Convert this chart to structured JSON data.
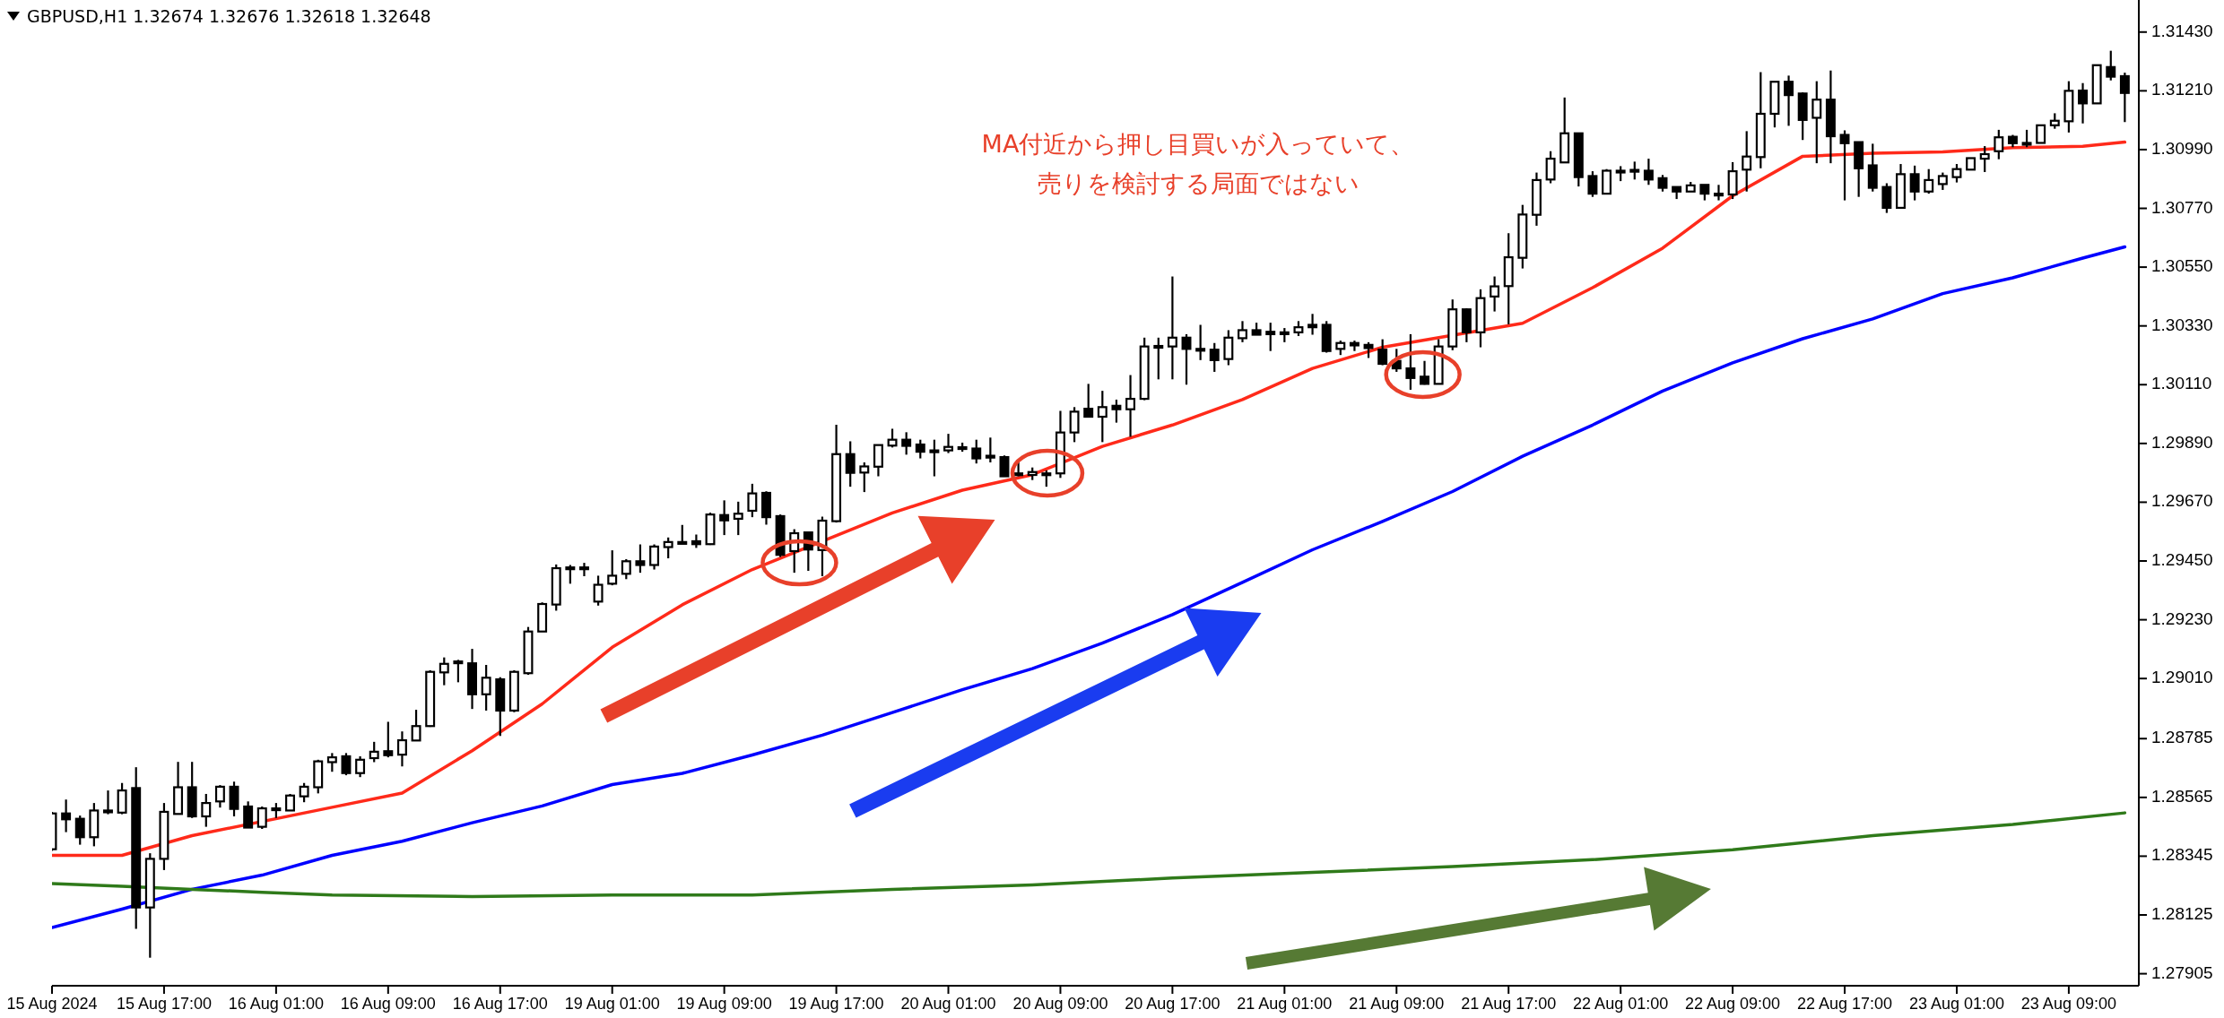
{
  "chart_data": {
    "type": "candlestick",
    "title": "GBPUSD,H1  1.32674 1.32676 1.32618 1.32648",
    "annotations": [
      "MA付近から押し目買いが入っていて、",
      "売りを検討する局面ではない"
    ],
    "ylim": [
      1.2786,
      1.3155
    ],
    "categories": [
      "15 Aug 2024",
      null,
      null,
      null,
      null,
      null,
      null,
      null,
      "15 Aug 17:00",
      null,
      null,
      null,
      null,
      null,
      null,
      null,
      "16 Aug 01:00",
      null,
      null,
      null,
      null,
      null,
      null,
      null,
      "16 Aug 09:00",
      null,
      null,
      null,
      null,
      null,
      null,
      null,
      "16 Aug 17:00",
      null,
      null,
      null,
      null,
      null,
      null,
      null,
      "19 Aug 01:00",
      null,
      null,
      null,
      null,
      null,
      null,
      null,
      "19 Aug 09:00",
      null,
      null,
      null,
      null,
      null,
      null,
      null,
      "19 Aug 17:00",
      null,
      null,
      null,
      null,
      null,
      null,
      null,
      "20 Aug 01:00",
      null,
      null,
      null,
      null,
      null,
      null,
      null,
      "20 Aug 09:00",
      null,
      null,
      null,
      null,
      null,
      null,
      null,
      "20 Aug 17:00",
      null,
      null,
      null,
      null,
      null,
      null,
      null,
      "21 Aug 01:00",
      null,
      null,
      null,
      null,
      null,
      null,
      null,
      "21 Aug 09:00",
      null,
      null,
      null,
      null,
      null,
      null,
      null,
      "21 Aug 17:00",
      null,
      null,
      null,
      null,
      null,
      null,
      null,
      "22 Aug 01:00",
      null,
      null,
      null,
      null,
      null,
      null,
      null,
      "22 Aug 09:00",
      null,
      null,
      null,
      null,
      null,
      null,
      null,
      "22 Aug 17:00",
      null,
      null,
      null,
      null,
      null,
      null,
      null,
      "23 Aug 01:00",
      null,
      null,
      null,
      null,
      null,
      null,
      null,
      "23 Aug 09:00",
      null,
      null,
      null,
      null
    ],
    "yticks": [
      {
        "value": 1.27905,
        "label": "1.27905"
      },
      {
        "value": 1.28125,
        "label": "1.28125"
      },
      {
        "value": 1.28345,
        "label": "1.28345"
      },
      {
        "value": 1.28565,
        "label": "1.28565"
      },
      {
        "value": 1.28785,
        "label": "1.28785"
      },
      {
        "value": 1.2901,
        "label": "1.29010"
      },
      {
        "value": 1.2923,
        "label": "1.29230"
      },
      {
        "value": 1.2945,
        "label": "1.29450"
      },
      {
        "value": 1.2967,
        "label": "1.29670"
      },
      {
        "value": 1.2989,
        "label": "1.29890"
      },
      {
        "value": 1.3011,
        "label": "1.30110"
      },
      {
        "value": 1.3033,
        "label": "1.30330"
      },
      {
        "value": 1.3055,
        "label": "1.30550"
      },
      {
        "value": 1.3077,
        "label": "1.30770"
      },
      {
        "value": 1.3099,
        "label": "1.30990"
      },
      {
        "value": 1.3121,
        "label": "1.31210"
      },
      {
        "value": 1.3143,
        "label": "1.31430"
      }
    ],
    "ohlc": [
      [
        1.28371,
        1.28511,
        1.28365,
        1.28505
      ],
      [
        1.28505,
        1.28557,
        1.28435,
        1.28483
      ],
      [
        1.28485,
        1.28497,
        1.28388,
        1.28416
      ],
      [
        1.28416,
        1.28544,
        1.28382,
        1.28516
      ],
      [
        1.28516,
        1.28591,
        1.28502,
        1.28516
      ],
      [
        1.28508,
        1.28619,
        1.28502,
        1.28591
      ],
      [
        1.286,
        1.28678,
        1.28073,
        1.28153
      ],
      [
        1.28153,
        1.28356,
        1.27965,
        1.28335
      ],
      [
        1.28335,
        1.28544,
        1.28293,
        1.28511
      ],
      [
        1.28503,
        1.28698,
        1.28503,
        1.28603
      ],
      [
        1.28603,
        1.28698,
        1.28488,
        1.28494
      ],
      [
        1.28494,
        1.28578,
        1.28455,
        1.28544
      ],
      [
        1.2855,
        1.28611,
        1.28527,
        1.28605
      ],
      [
        1.28605,
        1.28624,
        1.28494,
        1.28522
      ],
      [
        1.28531,
        1.2855,
        1.28452,
        1.28452
      ],
      [
        1.28455,
        1.28531,
        1.28447,
        1.28524
      ],
      [
        1.28524,
        1.28544,
        1.28488,
        1.2852
      ],
      [
        1.28516,
        1.28578,
        1.28516,
        1.28572
      ],
      [
        1.28569,
        1.28619,
        1.28547,
        1.28605
      ],
      [
        1.28603,
        1.28706,
        1.2858,
        1.287
      ],
      [
        1.28697,
        1.28731,
        1.28661,
        1.28715
      ],
      [
        1.28719,
        1.28731,
        1.28648,
        1.28656
      ],
      [
        1.28656,
        1.28719,
        1.28641,
        1.28706
      ],
      [
        1.28712,
        1.28773,
        1.28697,
        1.28736
      ],
      [
        1.28738,
        1.28848,
        1.28715,
        1.28723
      ],
      [
        1.28725,
        1.28812,
        1.28681,
        1.28779
      ],
      [
        1.28778,
        1.28893,
        1.28778,
        1.28832
      ],
      [
        1.28832,
        1.29041,
        1.28829,
        1.29035
      ],
      [
        1.29033,
        1.29089,
        1.28985,
        1.29065
      ],
      [
        1.29074,
        1.2908,
        1.28996,
        1.29074
      ],
      [
        1.29067,
        1.29121,
        1.28896,
        1.28951
      ],
      [
        1.28951,
        1.29061,
        1.2889,
        1.29013
      ],
      [
        1.29007,
        1.29015,
        1.28795,
        1.2889
      ],
      [
        1.2889,
        1.29041,
        1.28884,
        1.29035
      ],
      [
        1.2903,
        1.29203,
        1.29024,
        1.29186
      ],
      [
        1.29186,
        1.29295,
        1.29186,
        1.29289
      ],
      [
        1.29287,
        1.29437,
        1.29264,
        1.29423
      ],
      [
        1.29426,
        1.29435,
        1.29365,
        1.29426
      ],
      [
        1.29426,
        1.29443,
        1.29393,
        1.29426
      ],
      [
        1.29298,
        1.29395,
        1.29283,
        1.29361
      ],
      [
        1.29365,
        1.2949,
        1.29359,
        1.29395
      ],
      [
        1.29402,
        1.29457,
        1.29382,
        1.29449
      ],
      [
        1.29449,
        1.29512,
        1.29406,
        1.29435
      ],
      [
        1.29435,
        1.29512,
        1.29418,
        1.29504
      ],
      [
        1.29502,
        1.29538,
        1.2946,
        1.29521
      ],
      [
        1.29521,
        1.29585,
        1.29513,
        1.29521
      ],
      [
        1.29524,
        1.29549,
        1.29499,
        1.29513
      ],
      [
        1.29513,
        1.29631,
        1.2951,
        1.29624
      ],
      [
        1.29622,
        1.29677,
        1.29547,
        1.29602
      ],
      [
        1.29608,
        1.29672,
        1.29547,
        1.29627
      ],
      [
        1.29638,
        1.29739,
        1.29614,
        1.29703
      ],
      [
        1.29705,
        1.29711,
        1.29586,
        1.29614
      ],
      [
        1.29618,
        1.29624,
        1.29465,
        1.29473
      ],
      [
        1.29487,
        1.29569,
        1.29406,
        1.29554
      ],
      [
        1.29557,
        1.29557,
        1.29413,
        1.29493
      ],
      [
        1.29491,
        1.29616,
        1.29393,
        1.29601
      ],
      [
        1.29599,
        1.2996,
        1.29594,
        1.2985
      ],
      [
        1.2985,
        1.29898,
        1.29728,
        1.2978
      ],
      [
        1.29781,
        1.29819,
        1.29708,
        1.29804
      ],
      [
        1.29803,
        1.29884,
        1.29767,
        1.29884
      ],
      [
        1.29882,
        1.29945,
        1.29875,
        1.29904
      ],
      [
        1.29904,
        1.29932,
        1.29848,
        1.29881
      ],
      [
        1.29886,
        1.29904,
        1.29834,
        1.29859
      ],
      [
        1.29864,
        1.29904,
        1.29767,
        1.29859
      ],
      [
        1.29864,
        1.29926,
        1.29854,
        1.29877
      ],
      [
        1.29876,
        1.29893,
        1.29859,
        1.29876
      ],
      [
        1.29871,
        1.29904,
        1.29815,
        1.29834
      ],
      [
        1.29844,
        1.29912,
        1.29819,
        1.29837
      ],
      [
        1.29839,
        1.29845,
        1.29767,
        1.29767
      ],
      [
        1.29778,
        1.29823,
        1.29767,
        1.29775
      ],
      [
        1.29772,
        1.298,
        1.29753,
        1.29783
      ],
      [
        1.29778,
        1.29789,
        1.29728,
        1.29778
      ],
      [
        1.29778,
        1.30012,
        1.29761,
        1.29931
      ],
      [
        1.29931,
        1.30026,
        1.29895,
        1.30009
      ],
      [
        1.3002,
        1.30113,
        1.2999,
        1.2999
      ],
      [
        1.2999,
        1.30087,
        1.29895,
        1.30026
      ],
      [
        1.30031,
        1.30054,
        1.29968,
        1.30018
      ],
      [
        1.30018,
        1.30146,
        1.29915,
        1.30057
      ],
      [
        1.30057,
        1.30286,
        1.30052,
        1.30253
      ],
      [
        1.30255,
        1.30286,
        1.3013,
        1.30255
      ],
      [
        1.30253,
        1.30515,
        1.3013,
        1.30286
      ],
      [
        1.30286,
        1.30299,
        1.3011,
        1.30244
      ],
      [
        1.30244,
        1.30334,
        1.30202,
        1.30244
      ],
      [
        1.30241,
        1.30266,
        1.30158,
        1.30202
      ],
      [
        1.30206,
        1.30314,
        1.30183,
        1.30286
      ],
      [
        1.30284,
        1.30348,
        1.30269,
        1.30314
      ],
      [
        1.30314,
        1.30342,
        1.30297,
        1.30297
      ],
      [
        1.30308,
        1.30342,
        1.30236,
        1.30299
      ],
      [
        1.30306,
        1.30322,
        1.30269,
        1.30306
      ],
      [
        1.30306,
        1.30348,
        1.30292,
        1.30325
      ],
      [
        1.30334,
        1.30375,
        1.30297,
        1.30325
      ],
      [
        1.30334,
        1.30348,
        1.3023,
        1.30236
      ],
      [
        1.30244,
        1.30275,
        1.30221,
        1.30266
      ],
      [
        1.30266,
        1.30275,
        1.30236,
        1.30257
      ],
      [
        1.30259,
        1.30269,
        1.3021,
        1.30247
      ],
      [
        1.30241,
        1.3028,
        1.30183,
        1.30188
      ],
      [
        1.30199,
        1.30244,
        1.30158,
        1.30171
      ],
      [
        1.30171,
        1.30299,
        1.30091,
        1.30135
      ],
      [
        1.3014,
        1.30199,
        1.3011,
        1.30113
      ],
      [
        1.30113,
        1.3028,
        1.30113,
        1.30253
      ],
      [
        1.30253,
        1.30429,
        1.30239,
        1.30392
      ],
      [
        1.30392,
        1.30396,
        1.30269,
        1.30306
      ],
      [
        1.30306,
        1.30467,
        1.3025,
        1.30434
      ],
      [
        1.3044,
        1.30515,
        1.30384,
        1.30478
      ],
      [
        1.30479,
        1.30677,
        1.30336,
        1.30587
      ],
      [
        1.30585,
        1.30783,
        1.30545,
        1.30747
      ],
      [
        1.30746,
        1.30904,
        1.30705,
        1.30876
      ],
      [
        1.30878,
        1.30984,
        1.30864,
        1.30956
      ],
      [
        1.30942,
        1.31185,
        1.30942,
        1.31051
      ],
      [
        1.31051,
        1.31051,
        1.30852,
        1.30887
      ],
      [
        1.30891,
        1.30909,
        1.30813,
        1.30825
      ],
      [
        1.30825,
        1.30917,
        1.30825,
        1.30911
      ],
      [
        1.30911,
        1.30928,
        1.30872,
        1.30911
      ],
      [
        1.30914,
        1.30945,
        1.30878,
        1.30914
      ],
      [
        1.30911,
        1.30956,
        1.30858,
        1.30878
      ],
      [
        1.30883,
        1.30895,
        1.30833,
        1.30847
      ],
      [
        1.3085,
        1.3085,
        1.30805,
        1.30833
      ],
      [
        1.30833,
        1.30869,
        1.30833,
        1.30856
      ],
      [
        1.30858,
        1.30858,
        1.308,
        1.30825
      ],
      [
        1.30825,
        1.30858,
        1.308,
        1.30825
      ],
      [
        1.30822,
        1.30943,
        1.30805,
        1.30909
      ],
      [
        1.30915,
        1.31059,
        1.30833,
        1.30964
      ],
      [
        1.30962,
        1.3128,
        1.3092,
        1.31124
      ],
      [
        1.31124,
        1.31244,
        1.31073,
        1.31244
      ],
      [
        1.31244,
        1.31267,
        1.31079,
        1.31194
      ],
      [
        1.312,
        1.31204,
        1.31026,
        1.31101
      ],
      [
        1.31109,
        1.31246,
        1.30939,
        1.31177
      ],
      [
        1.31177,
        1.31286,
        1.30939,
        1.3104
      ],
      [
        1.31045,
        1.31062,
        1.308,
        1.31014
      ],
      [
        1.31018,
        1.31018,
        1.30813,
        1.3092
      ],
      [
        1.30931,
        1.31012,
        1.30833,
        1.30847
      ],
      [
        1.3085,
        1.30864,
        1.30753,
        1.30772
      ],
      [
        1.30772,
        1.30936,
        1.30772,
        1.30898
      ],
      [
        1.30898,
        1.3093,
        1.308,
        1.30833
      ],
      [
        1.30833,
        1.30917,
        1.30825,
        1.30876
      ],
      [
        1.30861,
        1.30904,
        1.30839,
        1.30891
      ],
      [
        1.30887,
        1.30936,
        1.30867,
        1.30917
      ],
      [
        1.30915,
        1.30958,
        1.30915,
        1.30958
      ],
      [
        1.30956,
        1.31003,
        1.30906,
        1.30973
      ],
      [
        1.30984,
        1.31064,
        1.30954,
        1.31036
      ],
      [
        1.31038,
        1.31045,
        1.30999,
        1.31014
      ],
      [
        1.31015,
        1.31064,
        1.30999,
        1.31015
      ],
      [
        1.31015,
        1.31082,
        1.31015,
        1.31081
      ],
      [
        1.31081,
        1.31126,
        1.31068,
        1.31098
      ],
      [
        1.31096,
        1.31246,
        1.31054,
        1.3121
      ],
      [
        1.31211,
        1.31239,
        1.31088,
        1.31163
      ],
      [
        1.31163,
        1.31306,
        1.31163,
        1.31306
      ],
      [
        1.31299,
        1.3136,
        1.31249,
        1.31263
      ],
      [
        1.31265,
        1.31278,
        1.31093,
        1.31202
      ]
    ],
    "series": [
      {
        "type": "line",
        "color": "#ff2a1a",
        "values": [
          1.28348,
          null,
          null,
          null,
          null,
          1.28348,
          null,
          null,
          null,
          null,
          1.28422,
          null,
          null,
          null,
          null,
          null,
          null,
          null,
          null,
          null,
          1.28528,
          null,
          null,
          null,
          null,
          1.28581,
          null,
          null,
          null,
          null,
          1.2874,
          null,
          null,
          null,
          null,
          1.28915,
          null,
          null,
          null,
          null,
          1.29127,
          null,
          null,
          null,
          null,
          1.29286,
          null,
          null,
          null,
          null,
          1.29418,
          null,
          null,
          null,
          null,
          null,
          null,
          null,
          null,
          null,
          1.2963,
          null,
          null,
          null,
          null,
          1.29715,
          null,
          null,
          null,
          null,
          1.29773,
          null,
          null,
          null,
          null,
          1.29879,
          null,
          null,
          null,
          null,
          1.29959,
          null,
          null,
          null,
          null,
          1.30054,
          null,
          null,
          null,
          null,
          1.30171,
          null,
          null,
          null,
          null,
          1.3025,
          null,
          null,
          null,
          null,
          null,
          null,
          null,
          null,
          null,
          1.3034,
          null,
          null,
          null,
          null,
          1.30473,
          null,
          null,
          null,
          null,
          1.30621,
          null,
          null,
          null,
          null,
          1.30817,
          null,
          null,
          null,
          null,
          1.30965,
          null,
          null,
          null,
          null,
          1.30976,
          null,
          null,
          null,
          null,
          1.30981,
          null,
          null,
          null,
          null,
          1.30997,
          null,
          null,
          null,
          null,
          1.31002,
          null,
          null,
          1.31018
        ]
      },
      {
        "type": "line",
        "color": "#0000ff",
        "values": [
          1.28078,
          null,
          null,
          null,
          null,
          1.28147,
          null,
          null,
          null,
          null,
          1.28221,
          null,
          null,
          null,
          null,
          1.28274,
          null,
          null,
          null,
          null,
          1.28348,
          null,
          null,
          null,
          null,
          1.28401,
          null,
          null,
          null,
          null,
          1.2847,
          null,
          null,
          null,
          null,
          1.28533,
          null,
          null,
          null,
          null,
          1.28613,
          null,
          null,
          null,
          null,
          1.28655,
          null,
          null,
          null,
          null,
          1.28724,
          null,
          null,
          null,
          null,
          1.28798,
          null,
          null,
          null,
          null,
          1.28883,
          null,
          null,
          null,
          null,
          1.28968,
          null,
          null,
          null,
          null,
          1.29047,
          null,
          null,
          null,
          null,
          1.29143,
          null,
          null,
          null,
          null,
          1.29249,
          null,
          null,
          null,
          null,
          1.2937,
          null,
          null,
          null,
          null,
          1.29492,
          null,
          null,
          null,
          null,
          1.29598,
          null,
          null,
          null,
          null,
          1.2971,
          null,
          null,
          null,
          null,
          1.29842,
          null,
          null,
          null,
          null,
          1.29959,
          null,
          null,
          null,
          null,
          1.30086,
          null,
          null,
          null,
          null,
          1.30192,
          null,
          null,
          null,
          null,
          1.30282,
          null,
          null,
          null,
          null,
          1.30356,
          null,
          null,
          null,
          null,
          1.30451,
          null,
          null,
          null,
          null,
          1.3051,
          null,
          null,
          null,
          null,
          1.30584,
          null,
          null,
          1.30626
        ]
      },
      {
        "type": "line",
        "color": "#2f7a1a",
        "values": [
          1.28242,
          null,
          null,
          null,
          null,
          1.28232,
          null,
          null,
          null,
          null,
          1.28221,
          null,
          null,
          null,
          null,
          1.2821,
          null,
          null,
          null,
          null,
          1.282,
          null,
          null,
          null,
          null,
          null,
          null,
          null,
          null,
          null,
          1.28194,
          null,
          null,
          null,
          null,
          null,
          null,
          null,
          null,
          null,
          1.282,
          null,
          null,
          null,
          null,
          null,
          null,
          null,
          null,
          null,
          1.282,
          null,
          null,
          null,
          null,
          null,
          null,
          null,
          null,
          null,
          1.28221,
          null,
          null,
          null,
          null,
          null,
          null,
          null,
          null,
          null,
          1.28237,
          null,
          null,
          null,
          null,
          null,
          null,
          null,
          null,
          null,
          1.28263,
          null,
          null,
          null,
          null,
          null,
          null,
          null,
          null,
          null,
          1.28284,
          null,
          null,
          null,
          null,
          null,
          null,
          null,
          null,
          null,
          1.28306,
          null,
          null,
          null,
          null,
          null,
          null,
          null,
          null,
          null,
          1.28332,
          null,
          null,
          null,
          null,
          null,
          null,
          null,
          null,
          null,
          1.28369,
          null,
          null,
          null,
          null,
          null,
          null,
          null,
          null,
          null,
          1.28422,
          null,
          null,
          null,
          null,
          null,
          null,
          null,
          null,
          null,
          1.28464,
          null,
          null,
          null,
          null,
          null,
          null,
          null,
          1.28507
        ]
      }
    ]
  }
}
